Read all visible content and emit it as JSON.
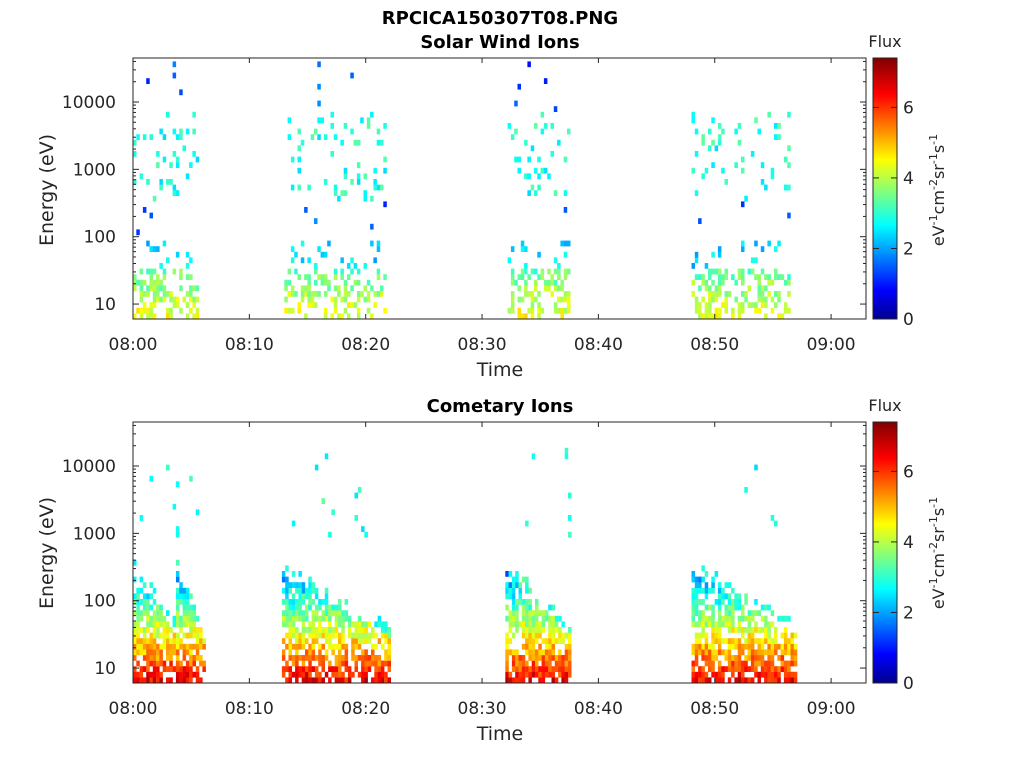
{
  "figure": {
    "title": "RPCICA150307T08.PNG"
  },
  "colors": {
    "axis": "#262626",
    "colormap": "jet"
  },
  "chart_data": [
    {
      "type": "heatmap",
      "title": "Solar Wind Ions",
      "xlabel": "Time",
      "ylabel": "Energy (eV)",
      "x_ticks": [
        "08:00",
        "08:10",
        "08:20",
        "08:30",
        "08:40",
        "08:50",
        "09:00"
      ],
      "y_ticks": [
        "10",
        "100",
        "1000",
        "10000"
      ],
      "y_scale": "log",
      "ylim": [
        6,
        45000
      ],
      "xlim_minutes": [
        0,
        63
      ],
      "colorbar": {
        "title": "Flux",
        "label": "eV-1cm-2sr-1s-1",
        "ticks": [
          "0",
          "2",
          "4",
          "6"
        ],
        "range": [
          0,
          7.4
        ]
      },
      "bursts_minutes": [
        {
          "start": 0.0,
          "end": 5.5,
          "low_flux": 4.5
        },
        {
          "start": 13.0,
          "end": 21.7,
          "low_flux": 4.5
        },
        {
          "start": 32.2,
          "end": 37.5,
          "low_flux": 4.5
        },
        {
          "start": 48.0,
          "end": 56.5,
          "low_flux": 4.5
        }
      ]
    },
    {
      "type": "heatmap",
      "title": "Cometary Ions",
      "xlabel": "Time",
      "ylabel": "Energy (eV)",
      "x_ticks": [
        "08:00",
        "08:10",
        "08:20",
        "08:30",
        "08:40",
        "08:50",
        "09:00"
      ],
      "y_ticks": [
        "10",
        "100",
        "1000",
        "10000"
      ],
      "y_scale": "log",
      "ylim": [
        6,
        45000
      ],
      "xlim_minutes": [
        0,
        63
      ],
      "colorbar": {
        "title": "Flux",
        "label": "eV-1cm-2sr-1s-1",
        "ticks": [
          "0",
          "2",
          "4",
          "6"
        ],
        "range": [
          0,
          7.4
        ]
      },
      "bursts_minutes": [
        {
          "start": 0.0,
          "end": 3.7,
          "low_flux": 6.5
        },
        {
          "start": 3.7,
          "end": 6.0,
          "low_flux": 6.5
        },
        {
          "start": 12.8,
          "end": 21.9,
          "low_flux": 6.5
        },
        {
          "start": 32.0,
          "end": 37.5,
          "low_flux": 6.5
        },
        {
          "start": 48.0,
          "end": 57.0,
          "low_flux": 6.5
        }
      ]
    }
  ]
}
